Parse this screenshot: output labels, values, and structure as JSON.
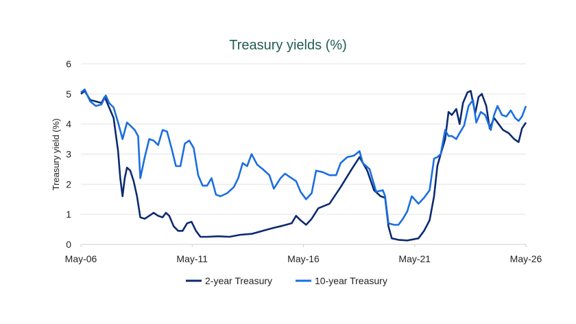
{
  "chart_data": {
    "type": "line",
    "title": "Treasury yields (%)",
    "xlabel": "",
    "ylabel": "Treasury yield (%)",
    "ylim": [
      0,
      6
    ],
    "yticks": [
      "0",
      "1",
      "2",
      "3",
      "4",
      "5",
      "6"
    ],
    "xlim": [
      2006.33,
      2026.33
    ],
    "xticks": [
      {
        "x": 2006.33,
        "label": "May-06"
      },
      {
        "x": 2011.33,
        "label": "May-11"
      },
      {
        "x": 2016.33,
        "label": "May-16"
      },
      {
        "x": 2021.33,
        "label": "May-21"
      },
      {
        "x": 2026.33,
        "label": "May-26"
      }
    ],
    "grid": true,
    "legend": "bottom",
    "series": [
      {
        "name": "2-year Treasury",
        "color": "#0b2a6f",
        "points": [
          [
            2006.33,
            5.0
          ],
          [
            2006.5,
            5.1
          ],
          [
            2006.75,
            4.8
          ],
          [
            2007.0,
            4.75
          ],
          [
            2007.25,
            4.7
          ],
          [
            2007.4,
            4.9
          ],
          [
            2007.6,
            4.55
          ],
          [
            2007.8,
            4.2
          ],
          [
            2008.0,
            3.1
          ],
          [
            2008.1,
            2.2
          ],
          [
            2008.2,
            1.6
          ],
          [
            2008.3,
            2.2
          ],
          [
            2008.4,
            2.55
          ],
          [
            2008.55,
            2.45
          ],
          [
            2008.7,
            2.1
          ],
          [
            2008.85,
            1.6
          ],
          [
            2009.0,
            0.9
          ],
          [
            2009.2,
            0.85
          ],
          [
            2009.4,
            0.95
          ],
          [
            2009.6,
            1.05
          ],
          [
            2009.8,
            0.95
          ],
          [
            2010.0,
            0.9
          ],
          [
            2010.15,
            1.05
          ],
          [
            2010.3,
            0.95
          ],
          [
            2010.5,
            0.6
          ],
          [
            2010.7,
            0.45
          ],
          [
            2010.9,
            0.45
          ],
          [
            2011.1,
            0.7
          ],
          [
            2011.3,
            0.75
          ],
          [
            2011.5,
            0.45
          ],
          [
            2011.7,
            0.25
          ],
          [
            2012.0,
            0.25
          ],
          [
            2012.5,
            0.27
          ],
          [
            2013.0,
            0.25
          ],
          [
            2013.5,
            0.32
          ],
          [
            2014.0,
            0.35
          ],
          [
            2014.5,
            0.45
          ],
          [
            2015.0,
            0.55
          ],
          [
            2015.4,
            0.62
          ],
          [
            2015.8,
            0.7
          ],
          [
            2016.0,
            0.95
          ],
          [
            2016.2,
            0.8
          ],
          [
            2016.45,
            0.65
          ],
          [
            2016.7,
            0.85
          ],
          [
            2017.0,
            1.2
          ],
          [
            2017.5,
            1.35
          ],
          [
            2018.0,
            1.9
          ],
          [
            2018.5,
            2.5
          ],
          [
            2018.85,
            2.9
          ],
          [
            2019.2,
            2.45
          ],
          [
            2019.5,
            1.8
          ],
          [
            2019.8,
            1.6
          ],
          [
            2020.0,
            1.55
          ],
          [
            2020.15,
            0.6
          ],
          [
            2020.3,
            0.2
          ],
          [
            2020.6,
            0.15
          ],
          [
            2021.0,
            0.13
          ],
          [
            2021.5,
            0.2
          ],
          [
            2021.75,
            0.45
          ],
          [
            2022.0,
            0.8
          ],
          [
            2022.2,
            1.6
          ],
          [
            2022.35,
            2.6
          ],
          [
            2022.5,
            3.0
          ],
          [
            2022.7,
            3.5
          ],
          [
            2022.85,
            4.4
          ],
          [
            2023.0,
            4.3
          ],
          [
            2023.2,
            4.5
          ],
          [
            2023.35,
            4.0
          ],
          [
            2023.5,
            4.7
          ],
          [
            2023.7,
            5.05
          ],
          [
            2023.85,
            5.1
          ],
          [
            2024.05,
            4.35
          ],
          [
            2024.2,
            4.9
          ],
          [
            2024.35,
            5.0
          ],
          [
            2024.55,
            4.6
          ],
          [
            2024.7,
            3.85
          ],
          [
            2024.9,
            4.2
          ],
          [
            2025.1,
            4.0
          ],
          [
            2025.3,
            3.8
          ],
          [
            2025.55,
            3.7
          ],
          [
            2025.8,
            3.5
          ],
          [
            2026.0,
            3.4
          ],
          [
            2026.15,
            3.85
          ],
          [
            2026.33,
            4.05
          ]
        ]
      },
      {
        "name": "10-year Treasury",
        "color": "#1a6ee0",
        "points": [
          [
            2006.33,
            5.05
          ],
          [
            2006.5,
            5.15
          ],
          [
            2006.75,
            4.75
          ],
          [
            2007.0,
            4.6
          ],
          [
            2007.25,
            4.65
          ],
          [
            2007.45,
            4.95
          ],
          [
            2007.6,
            4.7
          ],
          [
            2007.8,
            4.55
          ],
          [
            2008.0,
            4.05
          ],
          [
            2008.2,
            3.5
          ],
          [
            2008.4,
            4.05
          ],
          [
            2008.55,
            3.95
          ],
          [
            2008.75,
            3.8
          ],
          [
            2008.9,
            3.6
          ],
          [
            2009.0,
            2.2
          ],
          [
            2009.2,
            2.9
          ],
          [
            2009.4,
            3.5
          ],
          [
            2009.6,
            3.45
          ],
          [
            2009.8,
            3.3
          ],
          [
            2010.0,
            3.8
          ],
          [
            2010.2,
            3.75
          ],
          [
            2010.4,
            3.2
          ],
          [
            2010.6,
            2.6
          ],
          [
            2010.8,
            2.6
          ],
          [
            2011.0,
            3.35
          ],
          [
            2011.2,
            3.45
          ],
          [
            2011.4,
            3.2
          ],
          [
            2011.6,
            2.3
          ],
          [
            2011.8,
            1.95
          ],
          [
            2012.0,
            1.95
          ],
          [
            2012.2,
            2.2
          ],
          [
            2012.4,
            1.65
          ],
          [
            2012.6,
            1.6
          ],
          [
            2012.9,
            1.7
          ],
          [
            2013.2,
            1.9
          ],
          [
            2013.4,
            2.2
          ],
          [
            2013.6,
            2.7
          ],
          [
            2013.8,
            2.6
          ],
          [
            2014.0,
            3.0
          ],
          [
            2014.25,
            2.65
          ],
          [
            2014.5,
            2.5
          ],
          [
            2014.8,
            2.3
          ],
          [
            2015.0,
            1.85
          ],
          [
            2015.3,
            2.2
          ],
          [
            2015.5,
            2.35
          ],
          [
            2015.8,
            2.2
          ],
          [
            2016.0,
            2.1
          ],
          [
            2016.2,
            1.75
          ],
          [
            2016.45,
            1.5
          ],
          [
            2016.7,
            1.7
          ],
          [
            2016.9,
            2.45
          ],
          [
            2017.2,
            2.4
          ],
          [
            2017.5,
            2.3
          ],
          [
            2017.8,
            2.3
          ],
          [
            2018.0,
            2.7
          ],
          [
            2018.3,
            2.9
          ],
          [
            2018.6,
            2.95
          ],
          [
            2018.85,
            3.1
          ],
          [
            2019.0,
            2.7
          ],
          [
            2019.3,
            2.5
          ],
          [
            2019.6,
            1.75
          ],
          [
            2019.9,
            1.8
          ],
          [
            2020.0,
            1.6
          ],
          [
            2020.15,
            0.7
          ],
          [
            2020.4,
            0.65
          ],
          [
            2020.6,
            0.65
          ],
          [
            2020.8,
            0.85
          ],
          [
            2021.0,
            1.1
          ],
          [
            2021.2,
            1.6
          ],
          [
            2021.5,
            1.35
          ],
          [
            2021.75,
            1.55
          ],
          [
            2022.0,
            1.8
          ],
          [
            2022.2,
            2.85
          ],
          [
            2022.35,
            2.9
          ],
          [
            2022.5,
            3.0
          ],
          [
            2022.7,
            3.8
          ],
          [
            2022.85,
            3.6
          ],
          [
            2023.0,
            3.6
          ],
          [
            2023.2,
            3.5
          ],
          [
            2023.35,
            3.7
          ],
          [
            2023.55,
            3.95
          ],
          [
            2023.75,
            4.6
          ],
          [
            2023.95,
            4.8
          ],
          [
            2024.1,
            4.05
          ],
          [
            2024.3,
            4.4
          ],
          [
            2024.5,
            4.3
          ],
          [
            2024.75,
            3.8
          ],
          [
            2024.9,
            4.3
          ],
          [
            2025.05,
            4.6
          ],
          [
            2025.25,
            4.3
          ],
          [
            2025.45,
            4.25
          ],
          [
            2025.65,
            4.45
          ],
          [
            2025.85,
            4.2
          ],
          [
            2026.0,
            4.1
          ],
          [
            2026.15,
            4.25
          ],
          [
            2026.33,
            4.6
          ]
        ]
      }
    ]
  }
}
